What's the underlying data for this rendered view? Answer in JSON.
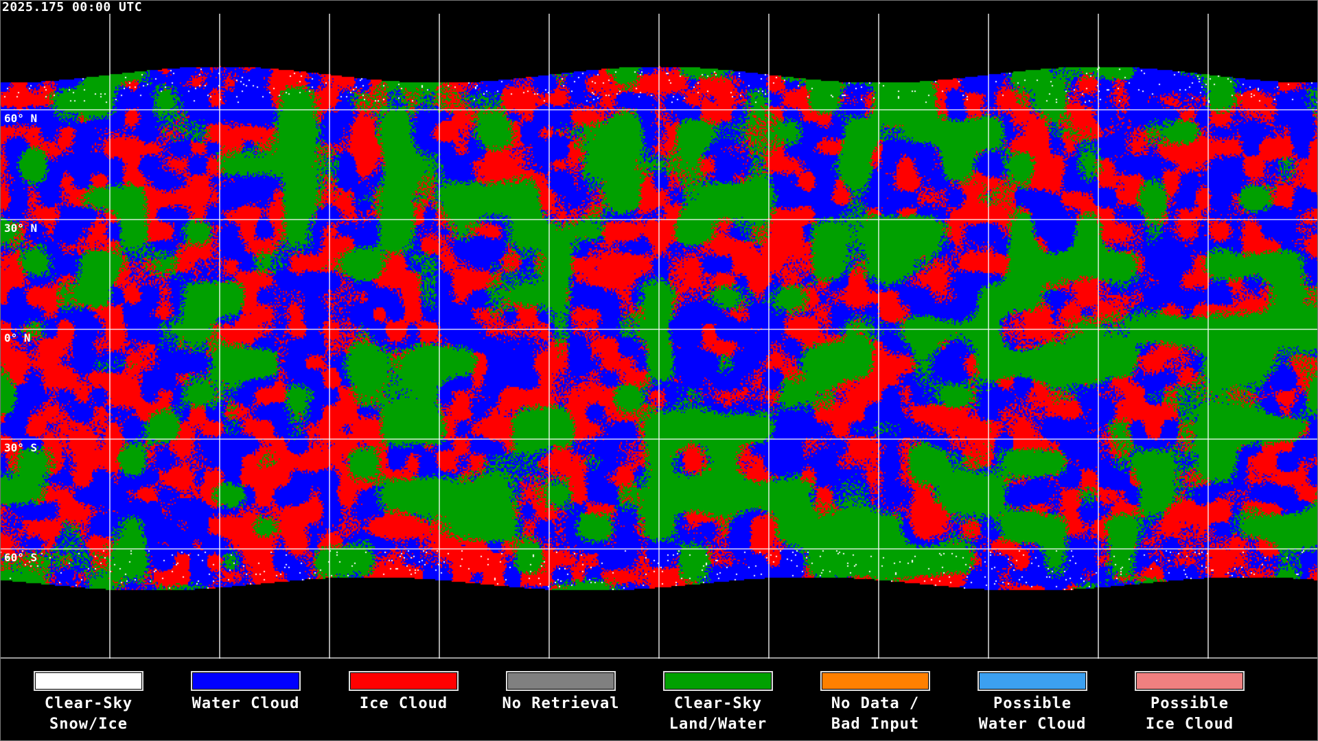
{
  "title": "2025.175 00:00 UTC",
  "latitude_labels": [
    "60° N",
    "30° N",
    "0° N",
    "30° S",
    "60° S"
  ],
  "legend": [
    {
      "line1": "Clear-Sky",
      "line2": "Snow/Ice",
      "color": "#ffffff"
    },
    {
      "line1": "Water Cloud",
      "line2": "",
      "color": "#0000ff"
    },
    {
      "line1": "Ice Cloud",
      "line2": "",
      "color": "#ff0000"
    },
    {
      "line1": "No Retrieval",
      "line2": "",
      "color": "#808080"
    },
    {
      "line1": "Clear-Sky",
      "line2": "Land/Water",
      "color": "#00a000"
    },
    {
      "line1": "No Data /",
      "line2": "Bad Input",
      "color": "#ff8000"
    },
    {
      "line1": "Possible",
      "line2": "Water Cloud",
      "color": "#3ca0f0"
    },
    {
      "line1": "Possible",
      "line2": "Ice Cloud",
      "color": "#f08080"
    }
  ]
}
